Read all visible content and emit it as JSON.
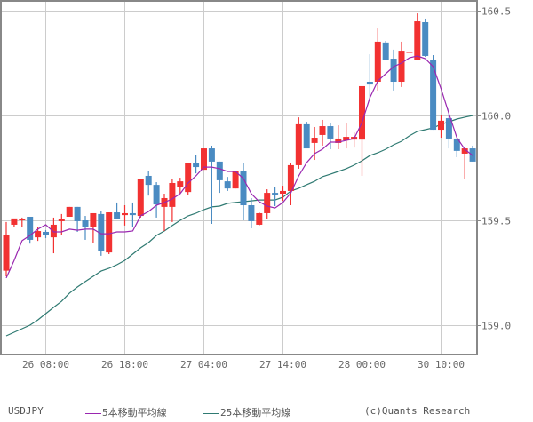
{
  "chart_data": {
    "type": "candlestick",
    "title": "",
    "symbol": "USDJPY",
    "xlabel": "",
    "ylabel": "",
    "ylim": [
      158.86,
      160.52
    ],
    "y_ticks": [
      159.0,
      159.5,
      160.0,
      160.5
    ],
    "y_tick_labels": [
      "159.0",
      "159.5",
      "160.0",
      "160.5"
    ],
    "x_tick_labels": [
      "26  08:00",
      "26  18:00",
      "27  04:00",
      "27  14:00",
      "28  00:00",
      "30  10:00"
    ],
    "x_tick_candle_index": [
      5,
      15,
      25,
      35,
      45,
      55
    ],
    "grid": true,
    "legend_position": "bottom",
    "up_color": "#f23131",
    "down_color": "#4a8bc2",
    "legend": [
      {
        "name": "5本移動平均線",
        "color": "#9a27b0"
      },
      {
        "name": "25本移動平均線",
        "color": "#2f7a72"
      }
    ],
    "candles": [
      {
        "o": 159.26,
        "h": 159.492,
        "l": 159.233,
        "c": 159.432
      },
      {
        "o": 159.479,
        "h": 159.504,
        "l": 159.47,
        "c": 159.509
      },
      {
        "o": 159.5,
        "h": 159.513,
        "l": 159.466,
        "c": 159.508
      },
      {
        "o": 159.517,
        "h": 159.517,
        "l": 159.389,
        "c": 159.407
      },
      {
        "o": 159.419,
        "h": 159.466,
        "l": 159.402,
        "c": 159.449
      },
      {
        "o": 159.445,
        "h": 159.453,
        "l": 159.415,
        "c": 159.428
      },
      {
        "o": 159.419,
        "h": 159.513,
        "l": 159.343,
        "c": 159.479
      },
      {
        "o": 159.496,
        "h": 159.53,
        "l": 159.428,
        "c": 159.508
      },
      {
        "o": 159.517,
        "h": 159.564,
        "l": 159.517,
        "c": 159.564
      },
      {
        "o": 159.564,
        "h": 159.564,
        "l": 159.445,
        "c": 159.496
      },
      {
        "o": 159.5,
        "h": 159.521,
        "l": 159.407,
        "c": 159.47
      },
      {
        "o": 159.47,
        "h": 159.534,
        "l": 159.394,
        "c": 159.534
      },
      {
        "o": 159.53,
        "h": 159.543,
        "l": 159.331,
        "c": 159.352
      },
      {
        "o": 159.347,
        "h": 159.538,
        "l": 159.339,
        "c": 159.538
      },
      {
        "o": 159.538,
        "h": 159.585,
        "l": 159.508,
        "c": 159.508
      },
      {
        "o": 159.525,
        "h": 159.572,
        "l": 159.475,
        "c": 159.534
      },
      {
        "o": 159.534,
        "h": 159.585,
        "l": 159.47,
        "c": 159.525
      },
      {
        "o": 159.521,
        "h": 159.699,
        "l": 159.513,
        "c": 159.699
      },
      {
        "o": 159.712,
        "h": 159.733,
        "l": 159.618,
        "c": 159.669
      },
      {
        "o": 159.669,
        "h": 159.682,
        "l": 159.513,
        "c": 159.576
      },
      {
        "o": 159.564,
        "h": 159.627,
        "l": 159.449,
        "c": 159.606
      },
      {
        "o": 159.564,
        "h": 159.699,
        "l": 159.492,
        "c": 159.678
      },
      {
        "o": 159.661,
        "h": 159.703,
        "l": 159.627,
        "c": 159.686
      },
      {
        "o": 159.635,
        "h": 159.775,
        "l": 159.623,
        "c": 159.775
      },
      {
        "o": 159.775,
        "h": 159.813,
        "l": 159.724,
        "c": 159.754
      },
      {
        "o": 159.741,
        "h": 159.843,
        "l": 159.741,
        "c": 159.843
      },
      {
        "o": 159.843,
        "h": 159.856,
        "l": 159.483,
        "c": 159.78
      },
      {
        "o": 159.78,
        "h": 159.78,
        "l": 159.631,
        "c": 159.691
      },
      {
        "o": 159.686,
        "h": 159.707,
        "l": 159.64,
        "c": 159.652
      },
      {
        "o": 159.652,
        "h": 159.737,
        "l": 159.652,
        "c": 159.737
      },
      {
        "o": 159.737,
        "h": 159.775,
        "l": 159.5,
        "c": 159.572
      },
      {
        "o": 159.572,
        "h": 159.606,
        "l": 159.462,
        "c": 159.496
      },
      {
        "o": 159.479,
        "h": 159.538,
        "l": 159.475,
        "c": 159.534
      },
      {
        "o": 159.534,
        "h": 159.648,
        "l": 159.508,
        "c": 159.631
      },
      {
        "o": 159.631,
        "h": 159.657,
        "l": 159.568,
        "c": 159.623
      },
      {
        "o": 159.627,
        "h": 159.665,
        "l": 159.593,
        "c": 159.64
      },
      {
        "o": 159.64,
        "h": 159.775,
        "l": 159.572,
        "c": 159.763
      },
      {
        "o": 159.763,
        "h": 159.991,
        "l": 159.746,
        "c": 159.958
      },
      {
        "o": 159.958,
        "h": 159.97,
        "l": 159.89,
        "c": 159.843
      },
      {
        "o": 159.869,
        "h": 159.945,
        "l": 159.788,
        "c": 159.894
      },
      {
        "o": 159.907,
        "h": 159.979,
        "l": 159.856,
        "c": 159.949
      },
      {
        "o": 159.949,
        "h": 159.962,
        "l": 159.839,
        "c": 159.89
      },
      {
        "o": 159.869,
        "h": 159.953,
        "l": 159.839,
        "c": 159.89
      },
      {
        "o": 159.881,
        "h": 159.962,
        "l": 159.843,
        "c": 159.898
      },
      {
        "o": 159.885,
        "h": 159.919,
        "l": 159.847,
        "c": 159.898
      },
      {
        "o": 159.885,
        "h": 160.14,
        "l": 159.712,
        "c": 160.14
      },
      {
        "o": 160.161,
        "h": 160.292,
        "l": 160.068,
        "c": 160.148
      },
      {
        "o": 160.161,
        "h": 160.415,
        "l": 160.119,
        "c": 160.352
      },
      {
        "o": 160.348,
        "h": 160.356,
        "l": 160.263,
        "c": 160.263
      },
      {
        "o": 160.271,
        "h": 160.314,
        "l": 160.119,
        "c": 160.161
      },
      {
        "o": 160.161,
        "h": 160.352,
        "l": 160.136,
        "c": 160.309
      },
      {
        "o": 160.301,
        "h": 160.305,
        "l": 160.301,
        "c": 160.305
      },
      {
        "o": 160.263,
        "h": 160.487,
        "l": 160.263,
        "c": 160.449
      },
      {
        "o": 160.445,
        "h": 160.462,
        "l": 160.28,
        "c": 160.284
      },
      {
        "o": 160.267,
        "h": 160.288,
        "l": 159.932,
        "c": 159.932
      },
      {
        "o": 159.932,
        "h": 160.004,
        "l": 159.894,
        "c": 159.975
      },
      {
        "o": 159.987,
        "h": 160.034,
        "l": 159.843,
        "c": 159.89
      },
      {
        "o": 159.89,
        "h": 159.89,
        "l": 159.801,
        "c": 159.831
      },
      {
        "o": 159.818,
        "h": 159.843,
        "l": 159.699,
        "c": 159.843
      },
      {
        "o": 159.843,
        "h": 159.856,
        "l": 159.78,
        "c": 159.78
      }
    ],
    "series": [
      {
        "name": "5本移動平均線",
        "values": [
          159.225,
          159.309,
          159.403,
          159.428,
          159.458,
          159.479,
          159.445,
          159.445,
          159.458,
          159.453,
          159.458,
          159.458,
          159.436,
          159.436,
          159.445,
          159.445,
          159.449,
          159.521,
          159.542,
          159.572,
          159.585,
          159.602,
          159.627,
          159.678,
          159.712,
          159.754,
          159.754,
          159.746,
          159.733,
          159.733,
          159.699,
          159.627,
          159.589,
          159.568,
          159.559,
          159.585,
          159.631,
          159.712,
          159.775,
          159.818,
          159.839,
          159.873,
          159.873,
          159.881,
          159.89,
          159.966,
          160.085,
          160.165,
          160.199,
          160.233,
          160.25,
          160.275,
          160.284,
          160.271,
          160.233,
          160.127,
          160.008,
          159.894,
          159.839,
          159.809
        ]
      },
      {
        "name": "25本移動平均線",
        "values": [
          158.949,
          158.966,
          158.983,
          159.0,
          159.025,
          159.055,
          159.085,
          159.114,
          159.153,
          159.182,
          159.208,
          159.233,
          159.258,
          159.271,
          159.288,
          159.309,
          159.339,
          159.369,
          159.394,
          159.428,
          159.449,
          159.475,
          159.5,
          159.521,
          159.534,
          159.551,
          159.564,
          159.568,
          159.581,
          159.585,
          159.589,
          159.593,
          159.597,
          159.597,
          159.597,
          159.61,
          159.64,
          159.653,
          159.67,
          159.686,
          159.708,
          159.72,
          159.733,
          159.746,
          159.763,
          159.784,
          159.809,
          159.822,
          159.839,
          159.86,
          159.877,
          159.903,
          159.924,
          159.932,
          159.941,
          159.958,
          159.97,
          159.983,
          159.992,
          160.0
        ]
      }
    ]
  },
  "footer": {
    "symbol": "USDJPY",
    "ma5_label": "5本移動平均線",
    "ma25_label": "25本移動平均線",
    "credit": "(c)Quants Research"
  }
}
